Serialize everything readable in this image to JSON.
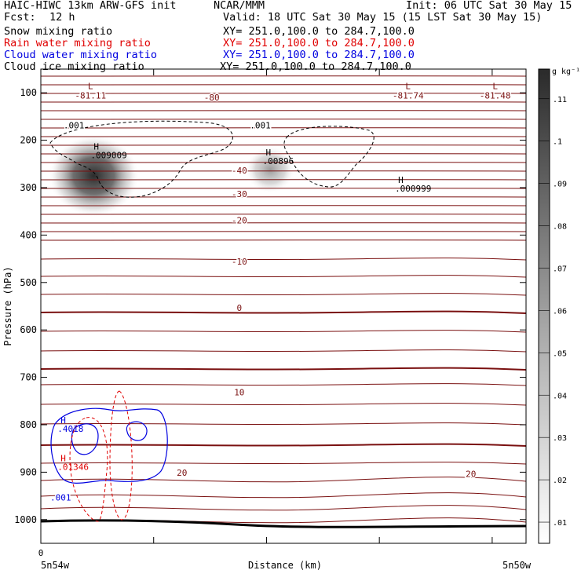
{
  "header": {
    "title": "HAIC-HIWC 13km ARW-GFS init",
    "org": "NCAR/MMM",
    "init": "Init: 06 UTC Sat 30 May 15",
    "fcst_label": "Fcst:",
    "fcst_value": "12 h",
    "valid": "Valid: 18 UTC Sat 30 May 15 (15 LST Sat 30 May 15)",
    "fields": [
      {
        "name": "Snow mixing ratio",
        "xy": "XY= 251.0,100.0 to 284.7,100.0",
        "color": "#000000"
      },
      {
        "name": "Rain water mixing ratio",
        "xy": "XY= 251.0,100.0 to 284.7,100.0",
        "color": "#e00000"
      },
      {
        "name": "Cloud water mixing ratio",
        "xy": "XY= 251.0,100.0 to 284.7,100.0",
        "color": "#0000e0"
      },
      {
        "name": "Cloud ice mixing ratio",
        "xy": "XY= 251.0,100.0 to 284.7,100.0",
        "color": "#000000"
      }
    ]
  },
  "chart_data": {
    "type": "heatmap",
    "xlabel": "Distance (km)",
    "ylabel": "Pressure (hPa)",
    "x_axis": {
      "ticks": [
        0
      ],
      "range": [
        0,
        440
      ],
      "left_label": "5n54w",
      "right_label": "5n50w"
    },
    "y_axis": {
      "ticks": [
        100,
        200,
        300,
        400,
        500,
        600,
        700,
        800,
        900,
        1000
      ],
      "range": [
        50,
        1050
      ],
      "reversed": true
    },
    "colorbar": {
      "unit": "g kg⁻¹",
      "ticks": [
        0.01,
        0.02,
        0.03,
        0.04,
        0.05,
        0.06,
        0.07,
        0.08,
        0.09,
        0.1,
        0.11
      ],
      "tick_labels": [
        ".01",
        ".02",
        ".03",
        ".04",
        ".05",
        ".06",
        ".07",
        ".08",
        ".09",
        ".1",
        ".11"
      ],
      "range": [
        0.005,
        0.117
      ]
    },
    "temperature_labels": [
      {
        "text": "-81.11",
        "x": 45,
        "p": 112
      },
      {
        "text": "-80",
        "x": 155,
        "p": 116
      },
      {
        "text": "-81.74",
        "x": 333,
        "p": 112
      },
      {
        "text": "-81.48",
        "x": 412,
        "p": 112
      },
      {
        "text": "-40",
        "x": 180,
        "p": 270
      },
      {
        "text": "-30",
        "x": 180,
        "p": 320
      },
      {
        "text": "-20",
        "x": 180,
        "p": 375
      },
      {
        "text": "-10",
        "x": 180,
        "p": 462
      },
      {
        "text": "0",
        "x": 180,
        "p": 560
      },
      {
        "text": "10",
        "x": 180,
        "p": 738
      },
      {
        "text": "20",
        "x": 128,
        "p": 908
      },
      {
        "text": "20",
        "x": 390,
        "p": 910
      }
    ],
    "low_markers": [
      {
        "text": "L",
        "x": 45,
        "p": 92
      },
      {
        "text": "L",
        "x": 333,
        "p": 92
      },
      {
        "text": "L",
        "x": 412,
        "p": 92
      }
    ],
    "max_markers": [
      {
        "text": "H",
        "value": ".009009",
        "x": 48,
        "p": 238,
        "color": "#000000"
      },
      {
        "text": "H",
        "value": ".00896",
        "x": 204,
        "p": 250,
        "color": "#000000"
      },
      {
        "text": "H",
        "value": ".000999",
        "x": 324,
        "p": 308,
        "color": "#000000"
      },
      {
        "text": "H",
        "value": ".4018",
        "x": 18,
        "p": 815,
        "color": "#0000e0"
      },
      {
        "text": "H",
        "value": ".01346",
        "x": 18,
        "p": 895,
        "color": "#e00000"
      }
    ],
    "contour_labels": [
      {
        "text": ".001",
        "x": 30,
        "p": 175,
        "color": "#000000"
      },
      {
        "text": ".001",
        "x": 199,
        "p": 175,
        "color": "#000000"
      },
      {
        "text": ".001",
        "x": 18,
        "p": 960,
        "color": "#0000e0"
      }
    ],
    "ice_blobs": [
      {
        "x": 48,
        "p": 275,
        "peak": 0.1
      },
      {
        "x": 208,
        "p": 262,
        "peak": 0.035
      }
    ]
  }
}
